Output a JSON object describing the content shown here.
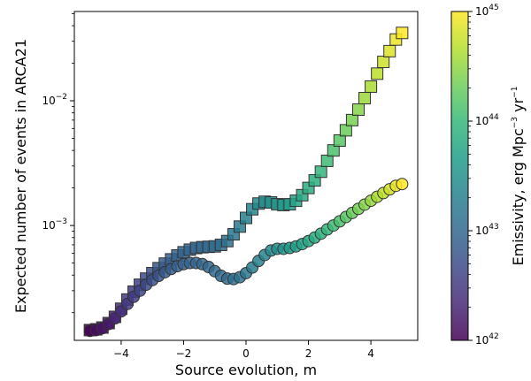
{
  "chart_data": {
    "type": "scatter",
    "title": "",
    "xlabel": "Source evolution, m",
    "ylabel": "Expected number of events in ARCA21",
    "xlim": [
      -5.5,
      5.5
    ],
    "ylim": [
      0.00012,
      0.052
    ],
    "yscale": "log",
    "grid": false,
    "x_ticks": [
      -4,
      -2,
      0,
      2,
      4
    ],
    "x_tick_labels": [
      "−4",
      "−2",
      "0",
      "2",
      "4"
    ],
    "y_ticks": [
      0.001,
      0.01
    ],
    "y_tick_labels": [
      {
        "base": "10",
        "exp": "−3"
      },
      {
        "base": "10",
        "exp": "−2"
      }
    ],
    "colorbar": {
      "label_main": "Emissivity, erg Mpc",
      "label_exp1": "−3",
      "label_mid": " yr",
      "label_exp2": "−1",
      "scale": "log",
      "colormap": "viridis",
      "range": [
        1e+42,
        1e+45
      ],
      "ticks": [
        {
          "base": "10",
          "exp": "42"
        },
        {
          "base": "10",
          "exp": "43"
        },
        {
          "base": "10",
          "exp": "44"
        },
        {
          "base": "10",
          "exp": "45"
        }
      ],
      "stops": [
        "#440154",
        "#482878",
        "#3e4989",
        "#31688e",
        "#26828e",
        "#1f9e89",
        "#35b779",
        "#6ece58",
        "#b5de2b",
        "#fde725"
      ]
    },
    "series": [
      {
        "marker": "square",
        "points": [
          [
            -5.0,
            0.000145,
            42.0
          ],
          [
            -4.8,
            0.000147,
            42.1
          ],
          [
            -4.6,
            0.000152,
            42.15
          ],
          [
            -4.4,
            0.000165,
            42.2
          ],
          [
            -4.2,
            0.000185,
            42.3
          ],
          [
            -4.0,
            0.000215,
            42.4
          ],
          [
            -3.8,
            0.000255,
            42.5
          ],
          [
            -3.6,
            0.000295,
            42.55
          ],
          [
            -3.4,
            0.000335,
            42.6
          ],
          [
            -3.2,
            0.000375,
            42.68
          ],
          [
            -3.0,
            0.000415,
            42.75
          ],
          [
            -2.8,
            0.000455,
            42.82
          ],
          [
            -2.6,
            0.000495,
            42.87
          ],
          [
            -2.4,
            0.000535,
            42.9
          ],
          [
            -2.2,
            0.000575,
            42.93
          ],
          [
            -2.0,
            0.00061,
            42.95
          ],
          [
            -1.8,
            0.00064,
            42.97
          ],
          [
            -1.6,
            0.00066,
            42.98
          ],
          [
            -1.4,
            0.00067,
            42.99
          ],
          [
            -1.2,
            0.000675,
            43.0
          ],
          [
            -1.0,
            0.00068,
            43.02
          ],
          [
            -0.8,
            0.0007,
            43.05
          ],
          [
            -0.6,
            0.00075,
            43.1
          ],
          [
            -0.4,
            0.00085,
            43.15
          ],
          [
            -0.2,
            0.00098,
            43.22
          ],
          [
            0.0,
            0.00115,
            43.3
          ],
          [
            0.2,
            0.00135,
            43.35
          ],
          [
            0.4,
            0.0015,
            43.4
          ],
          [
            0.6,
            0.00155,
            43.45
          ],
          [
            0.8,
            0.00153,
            43.5
          ],
          [
            1.0,
            0.00148,
            43.55
          ],
          [
            1.2,
            0.00146,
            43.6
          ],
          [
            1.4,
            0.00148,
            43.65
          ],
          [
            1.6,
            0.00158,
            43.72
          ],
          [
            1.8,
            0.00175,
            43.8
          ],
          [
            2.0,
            0.002,
            43.85
          ],
          [
            2.2,
            0.0023,
            43.9
          ],
          [
            2.4,
            0.0027,
            43.98
          ],
          [
            2.6,
            0.0033,
            44.05
          ],
          [
            2.8,
            0.004,
            44.12
          ],
          [
            3.0,
            0.0048,
            44.2
          ],
          [
            3.2,
            0.0058,
            44.3
          ],
          [
            3.4,
            0.007,
            44.38
          ],
          [
            3.6,
            0.0085,
            44.45
          ],
          [
            3.8,
            0.0105,
            44.55
          ],
          [
            4.0,
            0.013,
            44.62
          ],
          [
            4.2,
            0.0165,
            44.7
          ],
          [
            4.4,
            0.0205,
            44.78
          ],
          [
            4.6,
            0.025,
            44.85
          ],
          [
            4.8,
            0.031,
            44.92
          ],
          [
            5.0,
            0.035,
            45.0
          ]
        ]
      },
      {
        "marker": "circle",
        "points": [
          [
            -5.0,
            0.000143,
            42.0
          ],
          [
            -4.8,
            0.000145,
            42.1
          ],
          [
            -4.6,
            0.00015,
            42.15
          ],
          [
            -4.4,
            0.000162,
            42.2
          ],
          [
            -4.2,
            0.00018,
            42.3
          ],
          [
            -4.0,
            0.000205,
            42.4
          ],
          [
            -3.8,
            0.000235,
            42.5
          ],
          [
            -3.6,
            0.000268,
            42.55
          ],
          [
            -3.4,
            0.0003,
            42.62
          ],
          [
            -3.2,
            0.000335,
            42.68
          ],
          [
            -3.0,
            0.000365,
            42.74
          ],
          [
            -2.8,
            0.000395,
            42.8
          ],
          [
            -2.6,
            0.000422,
            42.84
          ],
          [
            -2.4,
            0.000448,
            42.88
          ],
          [
            -2.2,
            0.000472,
            42.9
          ],
          [
            -2.0,
            0.00049,
            42.93
          ],
          [
            -1.8,
            0.0005,
            42.95
          ],
          [
            -1.6,
            0.0005,
            42.97
          ],
          [
            -1.4,
            0.00049,
            42.98
          ],
          [
            -1.2,
            0.000465,
            42.99
          ],
          [
            -1.0,
            0.00043,
            43.0
          ],
          [
            -0.8,
            0.000395,
            43.02
          ],
          [
            -0.6,
            0.000375,
            43.04
          ],
          [
            -0.4,
            0.000372,
            43.08
          ],
          [
            -0.2,
            0.000385,
            43.12
          ],
          [
            0.0,
            0.000415,
            43.18
          ],
          [
            0.2,
            0.00046,
            43.25
          ],
          [
            0.4,
            0.00052,
            43.3
          ],
          [
            0.6,
            0.00058,
            43.36
          ],
          [
            0.8,
            0.00063,
            43.42
          ],
          [
            1.0,
            0.00065,
            43.48
          ],
          [
            1.2,
            0.00065,
            43.54
          ],
          [
            1.4,
            0.00066,
            43.6
          ],
          [
            1.6,
            0.00068,
            43.66
          ],
          [
            1.8,
            0.00071,
            43.72
          ],
          [
            2.0,
            0.00075,
            43.78
          ],
          [
            2.2,
            0.0008,
            43.84
          ],
          [
            2.4,
            0.00086,
            43.9
          ],
          [
            2.6,
            0.00093,
            43.98
          ],
          [
            2.8,
            0.001,
            44.05
          ],
          [
            3.0,
            0.00108,
            44.12
          ],
          [
            3.2,
            0.00117,
            44.2
          ],
          [
            3.4,
            0.00126,
            44.28
          ],
          [
            3.6,
            0.00136,
            44.36
          ],
          [
            3.8,
            0.00147,
            44.44
          ],
          [
            4.0,
            0.00158,
            44.52
          ],
          [
            4.2,
            0.0017,
            44.6
          ],
          [
            4.4,
            0.00182,
            44.7
          ],
          [
            4.6,
            0.00195,
            44.8
          ],
          [
            4.8,
            0.00208,
            44.9
          ],
          [
            5.0,
            0.00215,
            45.0
          ]
        ]
      }
    ]
  }
}
